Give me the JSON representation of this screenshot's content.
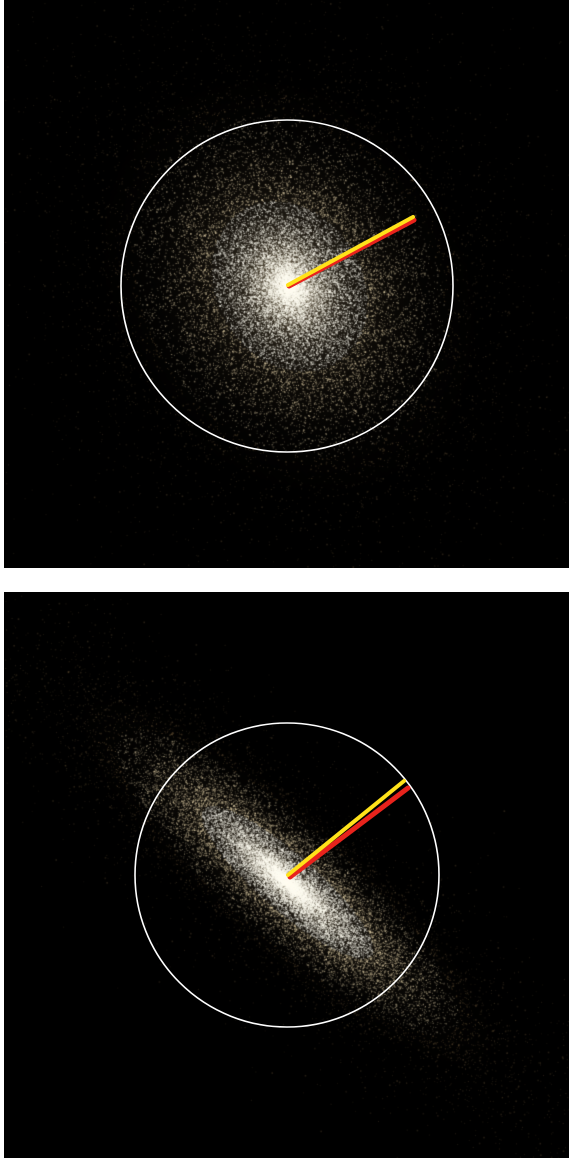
{
  "figure": {
    "background_color": "#000000",
    "separator_color": "#ffffff",
    "panels": [
      {
        "id": "face-on",
        "subject": "galaxy",
        "view": "face-on",
        "galaxy_colors": {
          "core": "#fffdf2",
          "mid": "#e9d7ae",
          "outer": "#a8885a"
        },
        "aperture_circle_color": "#ffffff",
        "vectors": [
          {
            "name": "red-vector",
            "color": "#e8231c"
          },
          {
            "name": "yellow-vector",
            "color": "#ffe21a"
          }
        ]
      },
      {
        "id": "edge-on",
        "subject": "galaxy",
        "view": "edge-on",
        "galaxy_colors": {
          "core": "#fffdf2",
          "mid": "#e9d7ae",
          "outer": "#a8885a"
        },
        "aperture_circle_color": "#ffffff",
        "vectors": [
          {
            "name": "red-vector",
            "color": "#e8231c"
          },
          {
            "name": "yellow-vector",
            "color": "#ffe21a"
          }
        ]
      }
    ]
  }
}
